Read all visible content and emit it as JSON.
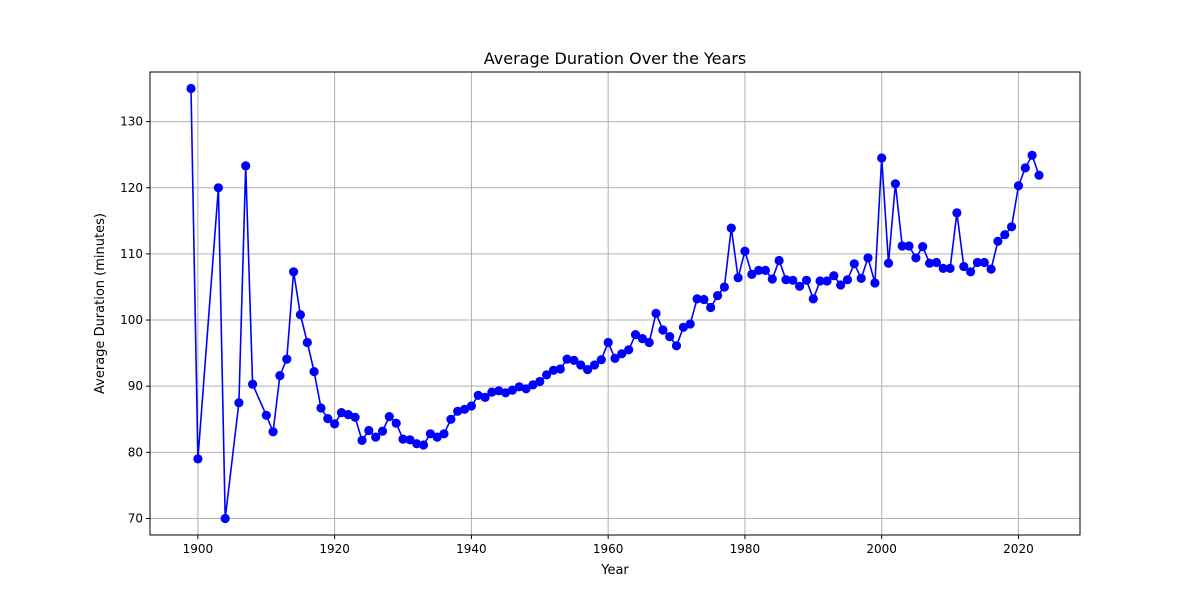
{
  "chart_data": {
    "type": "line",
    "title": "Average Duration Over the Years",
    "xlabel": "Year",
    "ylabel": "Average Duration (minutes)",
    "xlim": [
      1893,
      2029
    ],
    "ylim": [
      67.5,
      137.5
    ],
    "xticks": [
      1900,
      1920,
      1940,
      1960,
      1980,
      2000,
      2020
    ],
    "yticks": [
      70,
      80,
      90,
      100,
      110,
      120,
      130
    ],
    "grid": true,
    "line_color": "#0000ff",
    "marker": "circle",
    "series": [
      {
        "x": [
          1899,
          1900,
          1903,
          1904,
          1906,
          1907,
          1908,
          1910,
          1911,
          1912,
          1913,
          1914,
          1915,
          1916,
          1917,
          1918,
          1919,
          1920,
          1921,
          1922,
          1923,
          1924,
          1925,
          1926,
          1927,
          1928,
          1929,
          1930,
          1931,
          1932,
          1933,
          1934,
          1935,
          1936,
          1937,
          1938,
          1939,
          1940,
          1941,
          1942,
          1943,
          1944,
          1945,
          1946,
          1947,
          1948,
          1949,
          1950,
          1951,
          1952,
          1953,
          1954,
          1955,
          1956,
          1957,
          1958,
          1959,
          1960,
          1961,
          1962,
          1963,
          1964,
          1965,
          1966,
          1967,
          1968,
          1969,
          1970,
          1971,
          1972,
          1973,
          1974,
          1975,
          1976,
          1977,
          1978,
          1979,
          1980,
          1981,
          1982,
          1983,
          1984,
          1985,
          1986,
          1987,
          1988,
          1989,
          1990,
          1991,
          1992,
          1993,
          1994,
          1995,
          1996,
          1997,
          1998,
          1999,
          2000,
          2001,
          2002,
          2003,
          2004,
          2005,
          2006,
          2007,
          2008,
          2009,
          2010,
          2011,
          2012,
          2013,
          2014,
          2015,
          2016,
          2017,
          2018,
          2019,
          2020,
          2021,
          2022,
          2023
        ],
        "y": [
          135.0,
          79.0,
          120.0,
          70.0,
          87.5,
          123.3,
          90.3,
          85.6,
          83.1,
          91.6,
          94.1,
          107.3,
          100.8,
          96.6,
          92.2,
          86.7,
          85.1,
          84.3,
          86.0,
          85.7,
          85.3,
          81.8,
          83.3,
          82.3,
          83.2,
          85.4,
          84.4,
          82.0,
          81.9,
          81.3,
          81.1,
          82.8,
          82.3,
          82.8,
          85.0,
          86.2,
          86.5,
          87.0,
          88.6,
          88.3,
          89.1,
          89.3,
          89.0,
          89.4,
          89.9,
          89.6,
          90.2,
          90.7,
          91.7,
          92.4,
          92.6,
          94.1,
          93.9,
          93.2,
          92.5,
          93.2,
          94.0,
          96.6,
          94.2,
          94.9,
          95.5,
          97.8,
          97.2,
          96.6,
          101.0,
          98.5,
          97.5,
          96.1,
          98.9,
          99.4,
          103.2,
          103.1,
          101.9,
          103.7,
          105.0,
          113.9,
          106.4,
          110.4,
          106.9,
          107.5,
          107.5,
          106.2,
          109.0,
          106.1,
          106.0,
          105.1,
          106.0,
          103.2,
          105.9,
          105.9,
          106.7,
          105.3,
          106.1,
          108.5,
          106.3,
          109.4,
          105.6,
          124.5,
          108.6,
          120.6,
          111.2,
          111.2,
          109.4,
          111.1,
          108.6,
          108.7,
          107.8,
          107.8,
          116.2,
          108.1,
          107.3,
          108.7,
          108.7,
          107.7,
          111.9,
          112.9,
          114.1,
          120.3,
          123.0,
          124.9,
          121.9
        ]
      }
    ]
  }
}
